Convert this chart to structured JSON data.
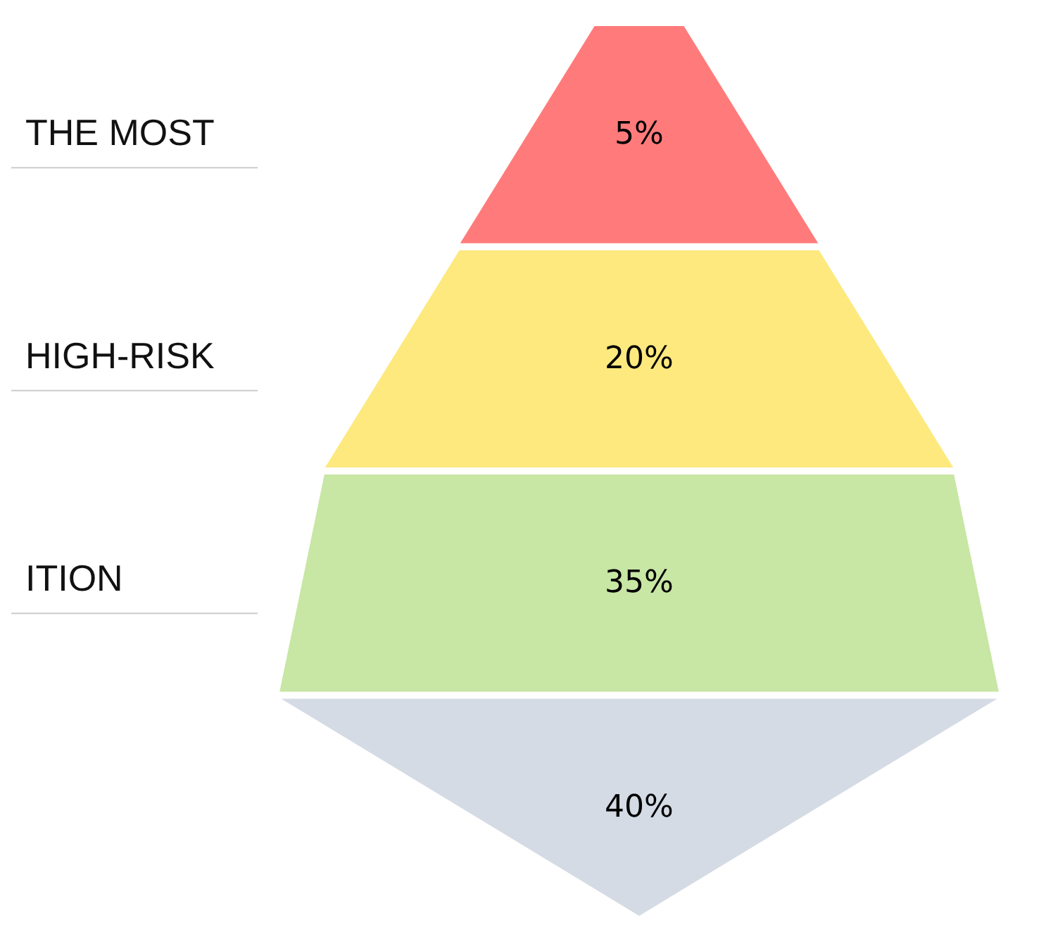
{
  "chart_data": {
    "type": "other",
    "categories": [
      "THE MOST",
      "HIGH-RISK",
      "ITION",
      null
    ],
    "values": [
      5,
      20,
      35,
      40
    ],
    "value_labels": [
      "5%",
      "20%",
      "35%",
      "40%"
    ],
    "colors": [
      "#ff7b7b",
      "#fde97e",
      "#c8e6a4",
      "#d5dbe4"
    ],
    "legend": false
  }
}
